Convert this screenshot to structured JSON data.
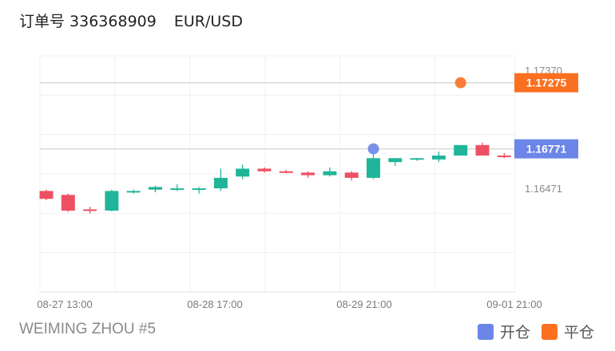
{
  "header": {
    "order_label": "订单号 336368909",
    "pair": "EUR/USD"
  },
  "footer": {
    "account": "WEIMING ZHOU #5"
  },
  "legend": {
    "items": [
      {
        "label": "开仓",
        "color": "#6b85e8"
      },
      {
        "label": "平仓",
        "color": "#fb7020"
      }
    ]
  },
  "colors": {
    "up": "#20b598",
    "down": "#ee5063",
    "open_marker": "#6b85e8",
    "close_marker": "#fb7020"
  },
  "chart_data": {
    "type": "candlestick",
    "x_tick_labels": [
      "08-27 13:00",
      "08-28 17:00",
      "08-29 21:00",
      "09-01 21:00"
    ],
    "y_tick_labels": [
      "1.17370",
      "1.16471"
    ],
    "ylim": [
      1.1568,
      1.1748
    ],
    "grid": true,
    "price_lines": [
      {
        "label": "1.17275",
        "value": 1.17275,
        "type": "close"
      },
      {
        "label": "1.16771",
        "value": 1.16771,
        "type": "open"
      }
    ],
    "markers": [
      {
        "type": "open",
        "candle_index": 15,
        "value": 1.16771
      },
      {
        "type": "close",
        "candle_index": 19,
        "value": 1.17275
      }
    ],
    "candles": [
      {
        "open": 1.1645,
        "close": 1.1639,
        "high": 1.1646,
        "low": 1.1638
      },
      {
        "open": 1.1642,
        "close": 1.163,
        "high": 1.1643,
        "low": 1.1629
      },
      {
        "open": 1.1631,
        "close": 1.163,
        "high": 1.1633,
        "low": 1.1628
      },
      {
        "open": 1.163,
        "close": 1.1645,
        "high": 1.1646,
        "low": 1.16295
      },
      {
        "open": 1.1645,
        "close": 1.1645,
        "high": 1.1646,
        "low": 1.1643
      },
      {
        "open": 1.1646,
        "close": 1.1648,
        "high": 1.1649,
        "low": 1.1644
      },
      {
        "open": 1.1646,
        "close": 1.1647,
        "high": 1.165,
        "low": 1.1645
      },
      {
        "open": 1.1646,
        "close": 1.1647,
        "high": 1.1648,
        "low": 1.1643
      },
      {
        "open": 1.1647,
        "close": 1.1655,
        "high": 1.1662,
        "low": 1.1645
      },
      {
        "open": 1.1656,
        "close": 1.1662,
        "high": 1.1665,
        "low": 1.1654
      },
      {
        "open": 1.1662,
        "close": 1.166,
        "high": 1.1663,
        "low": 1.1659
      },
      {
        "open": 1.166,
        "close": 1.1659,
        "high": 1.1661,
        "low": 1.16585
      },
      {
        "open": 1.1659,
        "close": 1.1657,
        "high": 1.166,
        "low": 1.1655
      },
      {
        "open": 1.1657,
        "close": 1.166,
        "high": 1.1663,
        "low": 1.1656
      },
      {
        "open": 1.1659,
        "close": 1.1655,
        "high": 1.166,
        "low": 1.1653
      },
      {
        "open": 1.1655,
        "close": 1.167,
        "high": 1.1673,
        "low": 1.1654
      },
      {
        "open": 1.1667,
        "close": 1.167,
        "high": 1.167,
        "low": 1.1664
      },
      {
        "open": 1.1669,
        "close": 1.167,
        "high": 1.167,
        "low": 1.1668
      },
      {
        "open": 1.1669,
        "close": 1.1672,
        "high": 1.1675,
        "low": 1.1667
      },
      {
        "open": 1.1672,
        "close": 1.168,
        "high": 1.168,
        "low": 1.1672
      },
      {
        "open": 1.168,
        "close": 1.1672,
        "high": 1.1682,
        "low": 1.1672
      },
      {
        "open": 1.1672,
        "close": 1.1671,
        "high": 1.1674,
        "low": 1.167
      }
    ]
  }
}
